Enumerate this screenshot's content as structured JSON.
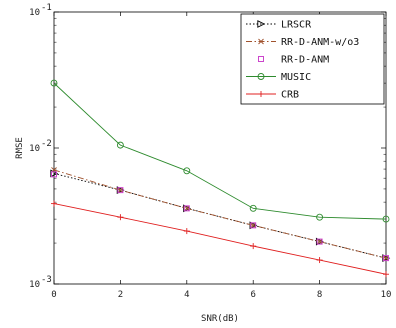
{
  "chart_data": {
    "type": "line",
    "title": "",
    "xlabel": "SNR(dB)",
    "ylabel": "RMSE",
    "xlim": [
      0,
      10
    ],
    "ylim": [
      0.001,
      0.1
    ],
    "yscale": "log",
    "grid": false,
    "legend_position": "top-right",
    "x": [
      0,
      2,
      4,
      6,
      8,
      10
    ],
    "x_ticks": [
      "0",
      "2",
      "4",
      "6",
      "8",
      "10"
    ],
    "y_ticks": [
      {
        "value": 0.001,
        "base": "10",
        "exp": "-3"
      },
      {
        "value": 0.01,
        "base": "10",
        "exp": "-2"
      },
      {
        "value": 0.1,
        "base": "10",
        "exp": "-1"
      }
    ],
    "series": [
      {
        "name": "LRSCR",
        "color": "#000000",
        "line": "dotted",
        "marker": "triangle-right",
        "values": [
          0.0065,
          0.0049,
          0.0036,
          0.0027,
          0.00205,
          0.00155
        ]
      },
      {
        "name": "RR-D-ANM-w/o3",
        "color": "#a0522d",
        "line": "dashdot",
        "marker": "x",
        "values": [
          0.0069,
          0.0049,
          0.0036,
          0.0027,
          0.00205,
          0.00155
        ]
      },
      {
        "name": "RR-D-ANM",
        "color": "#cc44cc",
        "line": "none",
        "marker": "square",
        "values": [
          0.0064,
          0.0049,
          0.0036,
          0.0027,
          0.00205,
          0.00155
        ]
      },
      {
        "name": "MUSIC",
        "color": "#2e8b2e",
        "line": "solid",
        "marker": "circle",
        "values": [
          0.03,
          0.0105,
          0.0068,
          0.0036,
          0.0031,
          0.003
        ]
      },
      {
        "name": "CRB",
        "color": "#e02020",
        "line": "solid",
        "marker": "plus",
        "values": [
          0.0039,
          0.0031,
          0.00245,
          0.0019,
          0.0015,
          0.00118
        ]
      }
    ]
  }
}
